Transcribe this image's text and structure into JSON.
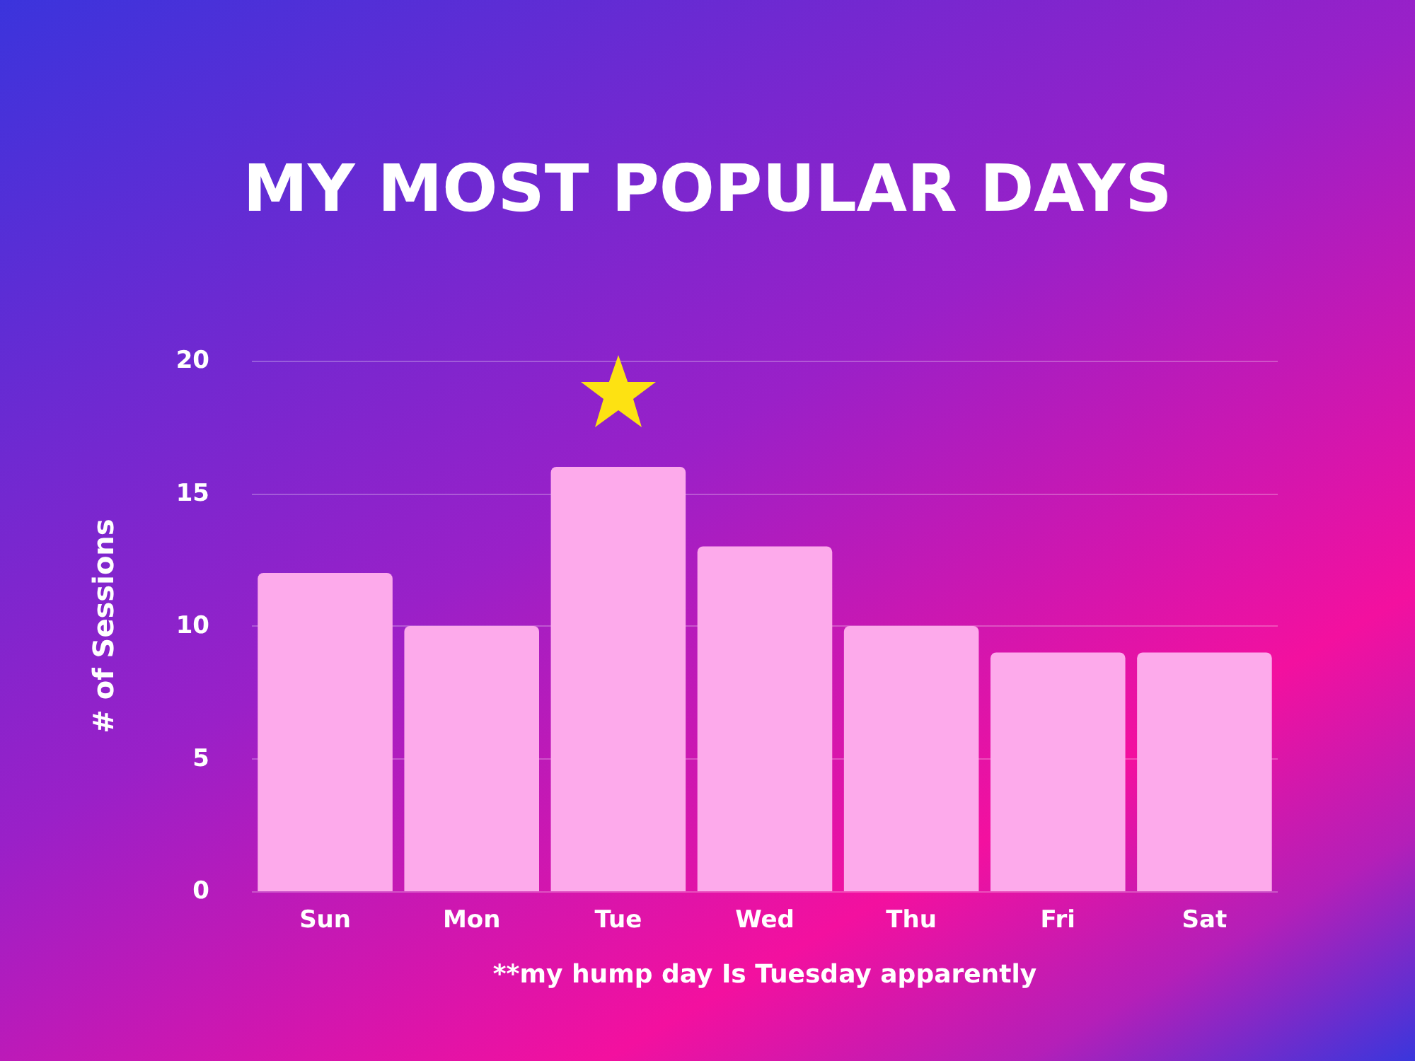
{
  "chart_data": {
    "type": "bar",
    "title": "MY MOST POPULAR DAYS",
    "xlabel": "**my hump day Is Tuesday apparently",
    "ylabel": "# of Sessions",
    "categories": [
      "Sun",
      "Mon",
      "Tue",
      "Wed",
      "Thu",
      "Fri",
      "Sat"
    ],
    "values": [
      12,
      10,
      16,
      13,
      10,
      9,
      9
    ],
    "color": "#fdaaeb",
    "ylim": [
      0,
      20
    ],
    "yticks": [
      0,
      5,
      10,
      15,
      20
    ],
    "grid": "y"
  }
}
